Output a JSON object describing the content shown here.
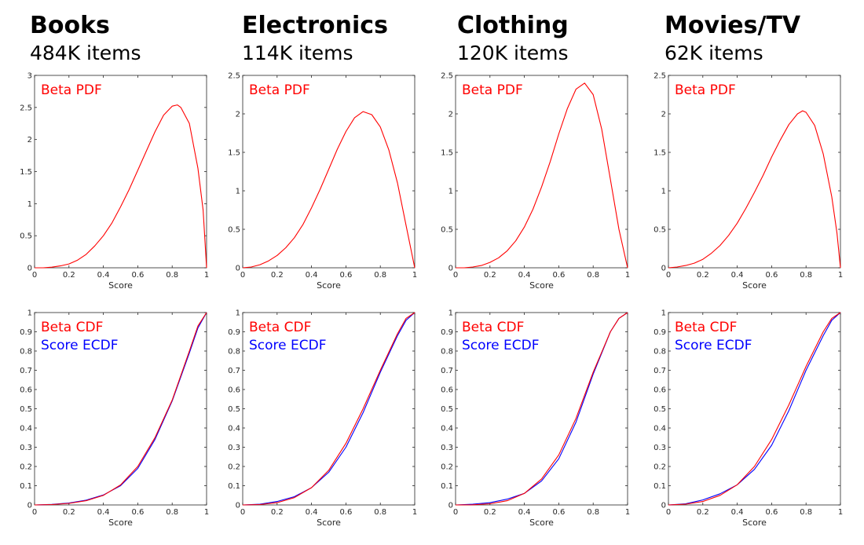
{
  "columns": [
    {
      "title": "Books",
      "subtitle": "484K items"
    },
    {
      "title": "Electronics",
      "subtitle": "114K items"
    },
    {
      "title": "Clothing",
      "subtitle": "120K items"
    },
    {
      "title": "Movies/TV",
      "subtitle": "62K items"
    }
  ],
  "colors": {
    "beta": "#ff0000",
    "ecdf": "#0000ff",
    "axis": "#262626"
  },
  "chart_data": [
    {
      "type": "line",
      "panel": "Books / PDF",
      "xlabel": "Score",
      "ylabel": "",
      "xlim": [
        0,
        1
      ],
      "ylim": [
        0,
        3
      ],
      "xticks": [
        "0",
        "0.2",
        "0.4",
        "0.6",
        "0.8",
        "1"
      ],
      "yticks": [
        "0",
        "0.5",
        "1",
        "1.5",
        "2",
        "2.5",
        "3"
      ],
      "legend": [
        {
          "label": "Beta PDF",
          "color": "#ff0000"
        }
      ],
      "series": [
        {
          "name": "Beta PDF",
          "color": "#ff0000",
          "x": [
            0,
            0.05,
            0.1,
            0.15,
            0.2,
            0.25,
            0.3,
            0.35,
            0.4,
            0.45,
            0.5,
            0.55,
            0.6,
            0.65,
            0.7,
            0.75,
            0.8,
            0.83,
            0.85,
            0.9,
            0.95,
            0.98,
            1.0
          ],
          "y": [
            0,
            0.0,
            0.01,
            0.03,
            0.06,
            0.12,
            0.21,
            0.34,
            0.5,
            0.7,
            0.95,
            1.22,
            1.52,
            1.82,
            2.12,
            2.38,
            2.52,
            2.54,
            2.5,
            2.25,
            1.55,
            0.9,
            0
          ]
        }
      ]
    },
    {
      "type": "line",
      "panel": "Electronics / PDF",
      "xlabel": "Score",
      "ylabel": "",
      "xlim": [
        0,
        1
      ],
      "ylim": [
        0,
        2.5
      ],
      "xticks": [
        "0",
        "0.2",
        "0.4",
        "0.6",
        "0.8",
        "1"
      ],
      "yticks": [
        "0",
        "0.5",
        "1",
        "1.5",
        "2",
        "2.5"
      ],
      "legend": [
        {
          "label": "Beta PDF",
          "color": "#ff0000"
        }
      ],
      "series": [
        {
          "name": "Beta PDF",
          "color": "#ff0000",
          "x": [
            0,
            0.05,
            0.1,
            0.15,
            0.2,
            0.25,
            0.3,
            0.35,
            0.4,
            0.45,
            0.5,
            0.55,
            0.6,
            0.65,
            0.7,
            0.75,
            0.8,
            0.85,
            0.9,
            0.95,
            1.0
          ],
          "y": [
            0,
            0.01,
            0.04,
            0.09,
            0.16,
            0.26,
            0.39,
            0.56,
            0.78,
            1.02,
            1.28,
            1.54,
            1.77,
            1.95,
            2.03,
            1.99,
            1.83,
            1.53,
            1.1,
            0.55,
            0
          ]
        }
      ]
    },
    {
      "type": "line",
      "panel": "Clothing / PDF",
      "xlabel": "Score",
      "ylabel": "",
      "xlim": [
        0,
        1
      ],
      "ylim": [
        0,
        2.5
      ],
      "xticks": [
        "0",
        "0.2",
        "0.4",
        "0.6",
        "0.8",
        "1"
      ],
      "yticks": [
        "0",
        "0.5",
        "1",
        "1.5",
        "2",
        "2.5"
      ],
      "legend": [
        {
          "label": "Beta PDF",
          "color": "#ff0000"
        }
      ],
      "series": [
        {
          "name": "Beta PDF",
          "color": "#ff0000",
          "x": [
            0,
            0.05,
            0.1,
            0.15,
            0.2,
            0.25,
            0.3,
            0.35,
            0.4,
            0.45,
            0.5,
            0.55,
            0.6,
            0.65,
            0.7,
            0.75,
            0.8,
            0.85,
            0.9,
            0.95,
            1.0
          ],
          "y": [
            0,
            0.0,
            0.01,
            0.03,
            0.07,
            0.13,
            0.22,
            0.35,
            0.53,
            0.76,
            1.05,
            1.38,
            1.74,
            2.07,
            2.32,
            2.4,
            2.25,
            1.8,
            1.15,
            0.5,
            0
          ]
        }
      ]
    },
    {
      "type": "line",
      "panel": "Movies/TV / PDF",
      "xlabel": "Score",
      "ylabel": "",
      "xlim": [
        0,
        1
      ],
      "ylim": [
        0,
        2.5
      ],
      "xticks": [
        "0",
        "0.2",
        "0.4",
        "0.6",
        "0.8",
        "1"
      ],
      "yticks": [
        "0",
        "0.5",
        "1",
        "1.5",
        "2",
        "2.5"
      ],
      "legend": [
        {
          "label": "Beta PDF",
          "color": "#ff0000"
        }
      ],
      "series": [
        {
          "name": "Beta PDF",
          "color": "#ff0000",
          "x": [
            0,
            0.05,
            0.1,
            0.15,
            0.2,
            0.25,
            0.3,
            0.35,
            0.4,
            0.45,
            0.5,
            0.55,
            0.6,
            0.65,
            0.7,
            0.75,
            0.78,
            0.8,
            0.85,
            0.9,
            0.95,
            0.98,
            1.0
          ],
          "y": [
            0,
            0.01,
            0.03,
            0.06,
            0.11,
            0.19,
            0.29,
            0.42,
            0.58,
            0.77,
            0.98,
            1.2,
            1.44,
            1.66,
            1.86,
            2.0,
            2.04,
            2.02,
            1.85,
            1.48,
            0.92,
            0.45,
            0
          ]
        }
      ]
    },
    {
      "type": "line",
      "panel": "Books / CDF",
      "xlabel": "Score",
      "ylabel": "",
      "xlim": [
        0,
        1
      ],
      "ylim": [
        0,
        1
      ],
      "xticks": [
        "0",
        "0.2",
        "0.4",
        "0.6",
        "0.8",
        "1"
      ],
      "yticks": [
        "0",
        "0.1",
        "0.2",
        "0.3",
        "0.4",
        "0.5",
        "0.6",
        "0.7",
        "0.8",
        "0.9",
        "1"
      ],
      "legend": [
        {
          "label": "Beta CDF",
          "color": "#ff0000"
        },
        {
          "label": "Score ECDF",
          "color": "#0000ff"
        }
      ],
      "series": [
        {
          "name": "Beta CDF",
          "color": "#ff0000",
          "x": [
            0,
            0.1,
            0.2,
            0.3,
            0.4,
            0.5,
            0.6,
            0.7,
            0.8,
            0.9,
            0.95,
            1.0
          ],
          "y": [
            0,
            0.002,
            0.008,
            0.022,
            0.05,
            0.104,
            0.2,
            0.35,
            0.545,
            0.8,
            0.93,
            1.0
          ]
        },
        {
          "name": "Score ECDF",
          "color": "#0000ff",
          "x": [
            0,
            0.1,
            0.2,
            0.3,
            0.4,
            0.5,
            0.6,
            0.7,
            0.8,
            0.9,
            0.95,
            1.0
          ],
          "y": [
            0,
            0.003,
            0.01,
            0.025,
            0.052,
            0.1,
            0.19,
            0.34,
            0.54,
            0.79,
            0.92,
            1.0
          ]
        }
      ]
    },
    {
      "type": "line",
      "panel": "Electronics / CDF",
      "xlabel": "Score",
      "ylabel": "",
      "xlim": [
        0,
        1
      ],
      "ylim": [
        0,
        1
      ],
      "xticks": [
        "0",
        "0.2",
        "0.4",
        "0.6",
        "0.8",
        "1"
      ],
      "yticks": [
        "0",
        "0.1",
        "0.2",
        "0.3",
        "0.4",
        "0.5",
        "0.6",
        "0.7",
        "0.8",
        "0.9",
        "1"
      ],
      "legend": [
        {
          "label": "Beta CDF",
          "color": "#ff0000"
        },
        {
          "label": "Score ECDF",
          "color": "#0000ff"
        }
      ],
      "series": [
        {
          "name": "Beta CDF",
          "color": "#ff0000",
          "x": [
            0,
            0.1,
            0.2,
            0.3,
            0.4,
            0.5,
            0.6,
            0.7,
            0.8,
            0.9,
            0.95,
            1.0
          ],
          "y": [
            0,
            0.002,
            0.012,
            0.038,
            0.09,
            0.18,
            0.32,
            0.5,
            0.7,
            0.89,
            0.97,
            1.0
          ]
        },
        {
          "name": "Score ECDF",
          "color": "#0000ff",
          "x": [
            0,
            0.1,
            0.2,
            0.3,
            0.4,
            0.5,
            0.6,
            0.7,
            0.8,
            0.9,
            0.95,
            1.0
          ],
          "y": [
            0,
            0.004,
            0.018,
            0.043,
            0.09,
            0.17,
            0.3,
            0.48,
            0.69,
            0.88,
            0.96,
            1.0
          ]
        }
      ]
    },
    {
      "type": "line",
      "panel": "Clothing / CDF",
      "xlabel": "Score",
      "ylabel": "",
      "xlim": [
        0,
        1
      ],
      "ylim": [
        0,
        1
      ],
      "xticks": [
        "0",
        "0.2",
        "0.4",
        "0.6",
        "0.8",
        "1"
      ],
      "yticks": [
        "0",
        "0.1",
        "0.2",
        "0.3",
        "0.4",
        "0.5",
        "0.6",
        "0.7",
        "0.8",
        "0.9",
        "1"
      ],
      "legend": [
        {
          "label": "Beta CDF",
          "color": "#ff0000"
        },
        {
          "label": "Score ECDF",
          "color": "#0000ff"
        }
      ],
      "series": [
        {
          "name": "Beta CDF",
          "color": "#ff0000",
          "x": [
            0,
            0.1,
            0.2,
            0.3,
            0.4,
            0.5,
            0.6,
            0.7,
            0.8,
            0.9,
            0.95,
            1.0
          ],
          "y": [
            0,
            0.001,
            0.006,
            0.022,
            0.06,
            0.135,
            0.26,
            0.45,
            0.69,
            0.9,
            0.97,
            1.0
          ]
        },
        {
          "name": "Score ECDF",
          "color": "#0000ff",
          "x": [
            0,
            0.1,
            0.2,
            0.3,
            0.4,
            0.5,
            0.6,
            0.7,
            0.8,
            0.9,
            0.95,
            1.0
          ],
          "y": [
            0,
            0.004,
            0.012,
            0.03,
            0.06,
            0.125,
            0.24,
            0.43,
            0.68,
            0.9,
            0.97,
            1.0
          ]
        }
      ]
    },
    {
      "type": "line",
      "panel": "Movies/TV / CDF",
      "xlabel": "Score",
      "ylabel": "",
      "xlim": [
        0,
        1
      ],
      "ylim": [
        0,
        1
      ],
      "xticks": [
        "0",
        "0.2",
        "0.4",
        "0.6",
        "0.8",
        "1"
      ],
      "yticks": [
        "0",
        "0.1",
        "0.2",
        "0.3",
        "0.4",
        "0.5",
        "0.6",
        "0.7",
        "0.8",
        "0.9",
        "1"
      ],
      "legend": [
        {
          "label": "Beta CDF",
          "color": "#ff0000"
        },
        {
          "label": "Score ECDF",
          "color": "#0000ff"
        }
      ],
      "series": [
        {
          "name": "Beta CDF",
          "color": "#ff0000",
          "x": [
            0,
            0.1,
            0.2,
            0.3,
            0.4,
            0.5,
            0.6,
            0.7,
            0.8,
            0.9,
            0.95,
            1.0
          ],
          "y": [
            0,
            0.004,
            0.018,
            0.05,
            0.105,
            0.2,
            0.34,
            0.52,
            0.72,
            0.9,
            0.97,
            1.0
          ]
        },
        {
          "name": "Score ECDF",
          "color": "#0000ff",
          "x": [
            0,
            0.1,
            0.2,
            0.3,
            0.4,
            0.5,
            0.6,
            0.7,
            0.8,
            0.9,
            0.95,
            1.0
          ],
          "y": [
            0,
            0.006,
            0.026,
            0.058,
            0.105,
            0.185,
            0.31,
            0.49,
            0.7,
            0.88,
            0.96,
            1.0
          ]
        }
      ]
    }
  ]
}
